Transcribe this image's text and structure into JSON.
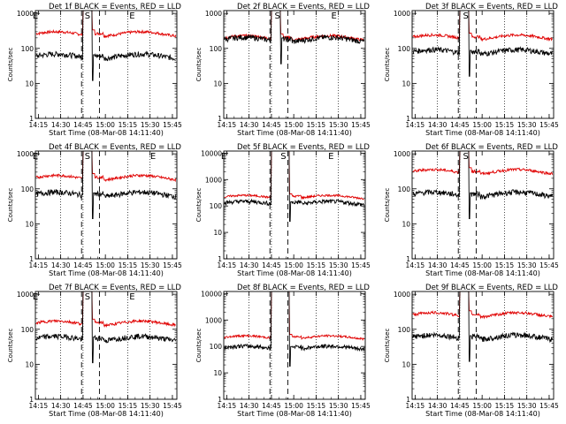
{
  "figure": {
    "xlabel_template": "Start Time ({start})",
    "start": "08-Mar-08 14:11:40",
    "ylabel": "Counts/sec",
    "title_template": "Det {det}f BLACK = Events, RED = LLD",
    "x_ticks": [
      "14:15",
      "14:30",
      "14:45",
      "15:00",
      "15:15",
      "15:30",
      "15:45"
    ],
    "y_ticks": [
      "1",
      "10",
      "100",
      "1000"
    ],
    "y_ticks_wide": [
      "1",
      "10",
      "100",
      "1000",
      "10000"
    ],
    "colors": {
      "events": "#000000",
      "lld": "#e00000",
      "axes": "#000000"
    }
  },
  "chart_data": [
    {
      "type": "line",
      "det": 1,
      "ylim": [
        1,
        1200
      ],
      "markers": [
        {
          "t": "14:13",
          "label": "E"
        },
        {
          "t": "14:48",
          "label": "S"
        },
        {
          "t": "15:18",
          "label": "E"
        }
      ],
      "events_level": 60,
      "lld_level": 260,
      "spike_style": "narrow"
    },
    {
      "type": "line",
      "det": 2,
      "ylim": [
        1,
        1200
      ],
      "markers": [
        {
          "t": "14:49",
          "label": "S"
        },
        {
          "t": "15:27",
          "label": "E"
        }
      ],
      "events_level": 180,
      "lld_level": 200,
      "spike_style": "narrow"
    },
    {
      "type": "line",
      "det": 3,
      "ylim": [
        1,
        1200
      ],
      "markers": [
        {
          "t": "14:49",
          "label": "S"
        }
      ],
      "events_level": 80,
      "lld_level": 210,
      "spike_style": "narrow"
    },
    {
      "type": "line",
      "det": 4,
      "ylim": [
        1,
        1200
      ],
      "markers": [
        {
          "t": "14:13",
          "label": "E"
        },
        {
          "t": "14:48",
          "label": "S"
        },
        {
          "t": "15:32",
          "label": "E"
        }
      ],
      "events_level": 70,
      "lld_level": 210,
      "spike_style": "narrow"
    },
    {
      "type": "line",
      "det": 5,
      "ylim": [
        1,
        12000
      ],
      "markers": [
        {
          "t": "14:13",
          "label": "E"
        },
        {
          "t": "14:53",
          "label": "S"
        },
        {
          "t": "15:25",
          "label": "E"
        }
      ],
      "events_level": 130,
      "lld_level": 220,
      "spike_style": "wide"
    },
    {
      "type": "line",
      "det": 6,
      "ylim": [
        1,
        1200
      ],
      "markers": [
        {
          "t": "14:49",
          "label": "S"
        }
      ],
      "events_level": 70,
      "lld_level": 310,
      "spike_style": "narrow"
    },
    {
      "type": "line",
      "det": 7,
      "ylim": [
        1,
        1200
      ],
      "markers": [
        {
          "t": "14:13",
          "label": "E"
        },
        {
          "t": "14:48",
          "label": "S"
        },
        {
          "t": "15:18",
          "label": "E"
        }
      ],
      "events_level": 55,
      "lld_level": 150,
      "spike_style": "narrow"
    },
    {
      "type": "line",
      "det": 8,
      "ylim": [
        1,
        12000
      ],
      "markers": [],
      "events_level": 90,
      "lld_level": 220,
      "spike_style": "wide"
    },
    {
      "type": "line",
      "det": 9,
      "ylim": [
        1,
        1200
      ],
      "markers": [],
      "events_level": 60,
      "lld_level": 260,
      "spike_style": "narrow"
    }
  ]
}
